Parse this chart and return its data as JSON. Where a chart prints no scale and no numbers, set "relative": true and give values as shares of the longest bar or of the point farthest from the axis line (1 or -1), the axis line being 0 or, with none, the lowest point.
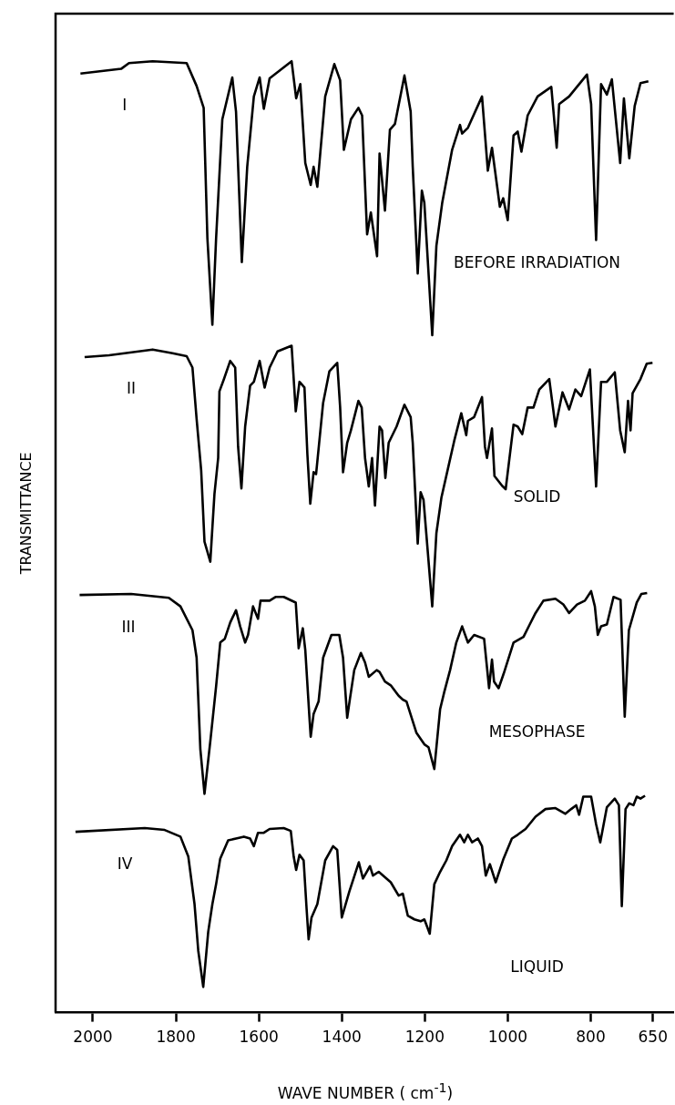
{
  "chart_data": {
    "type": "line",
    "relative": true,
    "ylabel": "TRANSMITTANCE",
    "xlabel": "WAVE NUMBER ( cm$^{-1}$)",
    "xlim": [
      2090,
      600
    ],
    "xticks": [
      2000,
      1800,
      1600,
      1400,
      1200,
      1000,
      800,
      650
    ],
    "series": [
      {
        "name": "I",
        "color": "#000000",
        "x": [
          2030,
          1932,
          1913,
          1856,
          1774,
          1750,
          1733,
          1724,
          1712,
          1703,
          1688,
          1664,
          1655,
          1641,
          1628,
          1612,
          1598,
          1588,
          1574,
          1521,
          1510,
          1500,
          1488,
          1475,
          1468,
          1459,
          1440,
          1418,
          1404,
          1395,
          1378,
          1360,
          1351,
          1339,
          1330,
          1315,
          1309,
          1296,
          1284,
          1272,
          1249,
          1234,
          1229,
          1217,
          1207,
          1201,
          1182,
          1172,
          1158,
          1134,
          1115,
          1110,
          1096,
          1062,
          1048,
          1038,
          1019,
          1011,
          1000,
          986,
          976,
          967,
          952,
          928,
          895,
          882,
          876,
          852,
          809,
          799,
          787,
          775,
          761,
          749,
          729,
          720,
          707,
          694,
          680,
          661
        ],
        "values": [
          0.987,
          0.992,
          0.998,
          1.0,
          0.998,
          0.974,
          0.951,
          0.814,
          0.723,
          0.814,
          0.939,
          0.983,
          0.947,
          0.789,
          0.889,
          0.963,
          0.983,
          0.95,
          0.982,
          1.0,
          0.961,
          0.976,
          0.893,
          0.87,
          0.889,
          0.868,
          0.963,
          0.997,
          0.98,
          0.907,
          0.939,
          0.951,
          0.943,
          0.818,
          0.841,
          0.795,
          0.903,
          0.843,
          0.928,
          0.934,
          0.985,
          0.947,
          0.889,
          0.777,
          0.864,
          0.851,
          0.712,
          0.806,
          0.851,
          0.907,
          0.933,
          0.924,
          0.93,
          0.963,
          0.885,
          0.909,
          0.847,
          0.856,
          0.833,
          0.922,
          0.926,
          0.905,
          0.943,
          0.963,
          0.973,
          0.909,
          0.955,
          0.963,
          0.986,
          0.955,
          0.812,
          0.976,
          0.965,
          0.981,
          0.893,
          0.961,
          0.898,
          0.953,
          0.977,
          0.979
        ]
      },
      {
        "name": "II",
        "color": "#000000",
        "x": [
          2020,
          1961,
          1856,
          1808,
          1774,
          1760,
          1750,
          1739,
          1731,
          1717,
          1707,
          1698,
          1695,
          1684,
          1669,
          1657,
          1650,
          1642,
          1633,
          1621,
          1612,
          1598,
          1586,
          1574,
          1555,
          1521,
          1511,
          1502,
          1490,
          1483,
          1476,
          1468,
          1462,
          1445,
          1430,
          1411,
          1404,
          1397,
          1387,
          1378,
          1360,
          1352,
          1344,
          1335,
          1327,
          1320,
          1309,
          1303,
          1295,
          1287,
          1268,
          1249,
          1234,
          1229,
          1217,
          1210,
          1203,
          1182,
          1172,
          1160,
          1143,
          1129,
          1112,
          1100,
          1096,
          1081,
          1062,
          1055,
          1050,
          1038,
          1032,
          1014,
          1005,
          986,
          976,
          965,
          952,
          938,
          924,
          900,
          885,
          868,
          852,
          837,
          823,
          802,
          787,
          775,
          761,
          742,
          729,
          718,
          710,
          704,
          699,
          680,
          665,
          651
        ],
        "values": [
          0.689,
          0.691,
          0.697,
          0.693,
          0.69,
          0.678,
          0.624,
          0.57,
          0.495,
          0.474,
          0.545,
          0.583,
          0.653,
          0.666,
          0.685,
          0.678,
          0.595,
          0.551,
          0.616,
          0.659,
          0.663,
          0.685,
          0.657,
          0.678,
          0.695,
          0.701,
          0.632,
          0.663,
          0.657,
          0.587,
          0.535,
          0.568,
          0.566,
          0.641,
          0.674,
          0.683,
          0.636,
          0.568,
          0.599,
          0.612,
          0.643,
          0.636,
          0.583,
          0.553,
          0.583,
          0.533,
          0.616,
          0.612,
          0.562,
          0.599,
          0.616,
          0.639,
          0.626,
          0.599,
          0.493,
          0.547,
          0.539,
          0.427,
          0.504,
          0.541,
          0.574,
          0.601,
          0.63,
          0.607,
          0.622,
          0.626,
          0.647,
          0.595,
          0.583,
          0.614,
          0.564,
          0.554,
          0.55,
          0.618,
          0.616,
          0.608,
          0.636,
          0.636,
          0.655,
          0.666,
          0.616,
          0.652,
          0.634,
          0.655,
          0.648,
          0.676,
          0.553,
          0.663,
          0.663,
          0.673,
          0.612,
          0.589,
          0.643,
          0.612,
          0.651,
          0.666,
          0.682,
          0.683
        ]
      },
      {
        "name": "III",
        "color": "#000000",
        "x": [
          2032,
          1908,
          1817,
          1789,
          1760,
          1750,
          1741,
          1731,
          1717,
          1703,
          1693,
          1682,
          1669,
          1655,
          1645,
          1633,
          1626,
          1614,
          1602,
          1596,
          1574,
          1559,
          1540,
          1511,
          1504,
          1494,
          1488,
          1478,
          1475,
          1468,
          1456,
          1445,
          1425,
          1406,
          1397,
          1387,
          1380,
          1370,
          1354,
          1344,
          1335,
          1316,
          1309,
          1296,
          1282,
          1263,
          1253,
          1244,
          1220,
          1201,
          1191,
          1177,
          1163,
          1153,
          1139,
          1124,
          1110,
          1096,
          1081,
          1057,
          1045,
          1038,
          1033,
          1022,
          1010,
          986,
          962,
          947,
          933,
          914,
          885,
          866,
          852,
          833,
          814,
          799,
          790,
          783,
          775,
          761,
          745,
          728,
          718,
          708,
          689,
          678,
          664
        ],
        "values": [
          0.439,
          0.44,
          0.436,
          0.427,
          0.402,
          0.373,
          0.277,
          0.23,
          0.285,
          0.343,
          0.389,
          0.393,
          0.41,
          0.423,
          0.406,
          0.389,
          0.397,
          0.427,
          0.414,
          0.433,
          0.433,
          0.437,
          0.437,
          0.431,
          0.383,
          0.404,
          0.381,
          0.31,
          0.29,
          0.314,
          0.327,
          0.373,
          0.397,
          0.397,
          0.373,
          0.31,
          0.331,
          0.36,
          0.378,
          0.368,
          0.353,
          0.36,
          0.358,
          0.348,
          0.344,
          0.333,
          0.329,
          0.327,
          0.294,
          0.282,
          0.279,
          0.256,
          0.319,
          0.337,
          0.36,
          0.389,
          0.406,
          0.389,
          0.397,
          0.393,
          0.341,
          0.371,
          0.348,
          0.341,
          0.356,
          0.389,
          0.395,
          0.408,
          0.42,
          0.433,
          0.435,
          0.429,
          0.42,
          0.429,
          0.433,
          0.443,
          0.427,
          0.397,
          0.406,
          0.408,
          0.437,
          0.434,
          0.311,
          0.402,
          0.431,
          0.44,
          0.441
        ]
      },
      {
        "name": "IV",
        "color": "#000000",
        "x": [
          2042,
          1875,
          1827,
          1789,
          1770,
          1755,
          1746,
          1734,
          1722,
          1712,
          1703,
          1693,
          1674,
          1655,
          1636,
          1621,
          1612,
          1602,
          1588,
          1574,
          1540,
          1523,
          1516,
          1510,
          1502,
          1492,
          1485,
          1480,
          1473,
          1459,
          1440,
          1421,
          1411,
          1400,
          1382,
          1359,
          1349,
          1332,
          1325,
          1311,
          1282,
          1263,
          1253,
          1241,
          1225,
          1210,
          1201,
          1188,
          1177,
          1163,
          1148,
          1134,
          1115,
          1105,
          1096,
          1086,
          1072,
          1062,
          1053,
          1043,
          1029,
          1010,
          990,
          976,
          957,
          933,
          909,
          885,
          861,
          847,
          835,
          828,
          818,
          799,
          787,
          777,
          761,
          742,
          732,
          725,
          716,
          707,
          697,
          689,
          680,
          669
        ],
        "values": [
          0.19,
          0.194,
          0.192,
          0.185,
          0.164,
          0.114,
          0.065,
          0.027,
          0.085,
          0.114,
          0.135,
          0.162,
          0.181,
          0.183,
          0.185,
          0.183,
          0.175,
          0.189,
          0.189,
          0.193,
          0.194,
          0.191,
          0.164,
          0.15,
          0.166,
          0.16,
          0.11,
          0.077,
          0.1,
          0.114,
          0.16,
          0.175,
          0.171,
          0.1,
          0.127,
          0.158,
          0.141,
          0.154,
          0.144,
          0.148,
          0.137,
          0.123,
          0.125,
          0.102,
          0.098,
          0.096,
          0.098,
          0.083,
          0.135,
          0.148,
          0.16,
          0.175,
          0.187,
          0.179,
          0.187,
          0.179,
          0.183,
          0.175,
          0.144,
          0.156,
          0.137,
          0.162,
          0.183,
          0.187,
          0.193,
          0.206,
          0.214,
          0.215,
          0.209,
          0.214,
          0.218,
          0.208,
          0.227,
          0.227,
          0.198,
          0.179,
          0.216,
          0.225,
          0.218,
          0.112,
          0.214,
          0.22,
          0.218,
          0.227,
          0.225,
          0.228
        ]
      }
    ],
    "annotations": [
      "BEFORE IRRADIATION",
      "SOLID",
      "MESOPHASE",
      "LIQUID"
    ]
  }
}
